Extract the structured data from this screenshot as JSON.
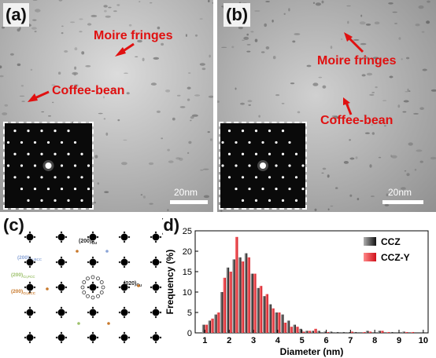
{
  "panels": {
    "a": {
      "label": "(a)",
      "annotations": [
        "Moire fringes",
        "Coffee-bean"
      ],
      "scale_bar": "20nm"
    },
    "b": {
      "label": "(b)",
      "annotations": [
        "Moire fringes",
        "Coffee-bean"
      ],
      "scale_bar": "20nm"
    },
    "c": {
      "label": "(c)",
      "index_labels": [
        "(200)Cu",
        "(200)Cr,BCC",
        "(200)Cr,FCC",
        "(020)Cu",
        "(200)Cr,BCC"
      ]
    },
    "d": {
      "label": "(d)"
    }
  },
  "colors": {
    "annotation": "#e01010",
    "ccz": "#222222",
    "ccz_y": "#e8202a"
  },
  "chart_data": {
    "type": "bar",
    "xlabel": "Diameter (nm)",
    "ylabel": "Frequency (%)",
    "xlim": [
      0.6,
      10.2
    ],
    "ylim": [
      0,
      25
    ],
    "xticks": [
      "1",
      "2",
      "3",
      "4",
      "5",
      "6",
      "7",
      "8",
      "9",
      "10"
    ],
    "yticks": [
      "0",
      "5",
      "10",
      "15",
      "20",
      "25"
    ],
    "legend_position": "top-right",
    "x": [
      0.75,
      1.0,
      1.25,
      1.5,
      1.75,
      2.0,
      2.25,
      2.5,
      2.75,
      3.0,
      3.25,
      3.5,
      3.75,
      4.0,
      4.25,
      4.5,
      4.75,
      5.0,
      5.25,
      5.5,
      5.75,
      6.0,
      6.25,
      6.5,
      6.75,
      7.0,
      7.25,
      7.5,
      7.75,
      8.0,
      8.25,
      8.5,
      8.75,
      9.0,
      9.25,
      9.5,
      9.75,
      10.0
    ],
    "series": [
      {
        "name": "CCZ",
        "values": [
          0,
          2,
          3,
          4.5,
          10,
          16,
          18,
          18.5,
          19.5,
          14.5,
          11,
          9,
          7,
          5,
          4.5,
          3,
          2,
          1,
          0.5,
          0.5,
          0.5,
          0.3,
          0.3,
          0.2,
          0.2,
          0.2,
          0.2,
          0,
          0.5,
          0,
          0.5,
          0,
          0.2,
          0,
          0.3,
          0,
          0,
          0
        ]
      },
      {
        "name": "CCZ-Y",
        "values": [
          0,
          2,
          3.5,
          5,
          13.5,
          15,
          23.5,
          17.5,
          18.5,
          14.5,
          11.5,
          9.5,
          6,
          5,
          2.5,
          1.5,
          1.5,
          0.3,
          0.5,
          1,
          0,
          0.2,
          0,
          0,
          0,
          0.3,
          0,
          0.2,
          0.3,
          0,
          0.5,
          0.2,
          0,
          0,
          0.2,
          0.2,
          0,
          0
        ]
      }
    ]
  }
}
